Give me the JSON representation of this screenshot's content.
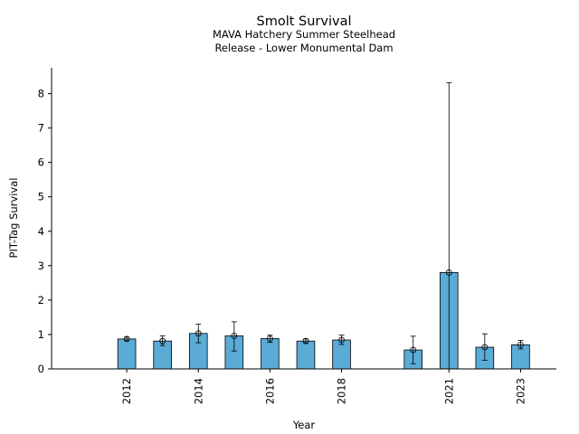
{
  "chart_data": {
    "type": "bar",
    "title": "Smolt Survival",
    "subtitle_lines": [
      "MAVA Hatchery Summer Steelhead",
      "Release - Lower Monumental Dam"
    ],
    "xlabel": "Year",
    "ylabel": "PIT-Tag Survival",
    "x_range": [
      2009.9,
      2024.0
    ],
    "ylim": [
      0,
      8.75
    ],
    "yticks": [
      0,
      1,
      2,
      3,
      4,
      5,
      6,
      7,
      8
    ],
    "xticks": [
      2012,
      2014,
      2016,
      2018,
      2021,
      2023
    ],
    "grid": false,
    "bar_color": "#5aabd6",
    "bars": [
      {
        "year": 2012,
        "value": 0.87,
        "err_low": 0.82,
        "err_high": 0.92
      },
      {
        "year": 2013,
        "value": 0.81,
        "err_low": 0.68,
        "err_high": 0.96
      },
      {
        "year": 2014,
        "value": 1.03,
        "err_low": 0.76,
        "err_high": 1.3
      },
      {
        "year": 2015,
        "value": 0.96,
        "err_low": 0.52,
        "err_high": 1.37
      },
      {
        "year": 2016,
        "value": 0.88,
        "err_low": 0.77,
        "err_high": 0.98
      },
      {
        "year": 2017,
        "value": 0.81,
        "err_low": 0.76,
        "err_high": 0.87
      },
      {
        "year": 2018,
        "value": 0.84,
        "err_low": 0.71,
        "err_high": 0.98
      },
      {
        "year": 2020,
        "value": 0.55,
        "err_low": 0.15,
        "err_high": 0.95
      },
      {
        "year": 2021,
        "value": 2.8,
        "err_low": 0.0,
        "err_high": 8.32
      },
      {
        "year": 2022,
        "value": 0.63,
        "err_low": 0.25,
        "err_high": 1.02
      },
      {
        "year": 2023,
        "value": 0.7,
        "err_low": 0.58,
        "err_high": 0.83
      }
    ]
  }
}
